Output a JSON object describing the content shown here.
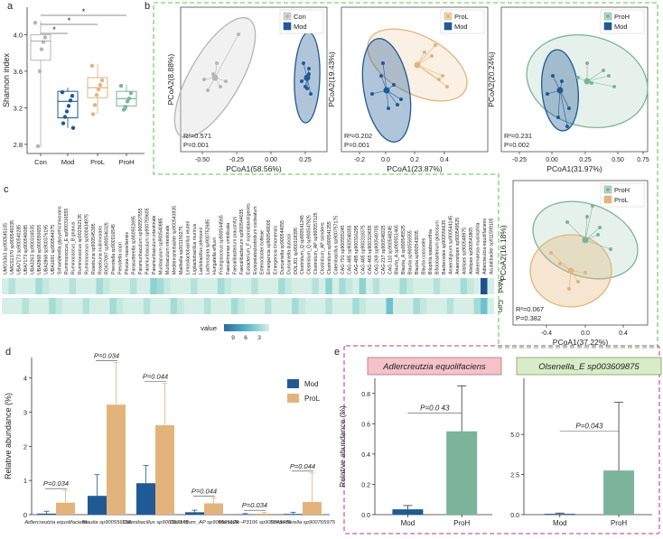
{
  "figure_labels": {
    "a": "a",
    "b": "b",
    "c": "c",
    "d": "d",
    "e": "e"
  },
  "colors": {
    "con": "#b5b5b5",
    "mod": "#1f5a96",
    "prol": "#e2b47c",
    "proh": "#7bb49a",
    "panel_border_green": "#7fd06c",
    "panel_border_pink": "#c55ea9",
    "heat_low": "#2d6c99",
    "heat_mid": "#55b6c8",
    "heat_high": "#d5efe6"
  },
  "chart_data": [
    {
      "id": "a",
      "type": "box",
      "ylabel": "Shannon index",
      "yticks": [
        "2.8",
        "3.2",
        "3.6",
        "4.0"
      ],
      "ylim": [
        2.7,
        4.3
      ],
      "categories": [
        "Con",
        "Mod",
        "ProL",
        "ProH"
      ],
      "medians": [
        3.93,
        3.27,
        3.42,
        3.3
      ],
      "q1": [
        3.72,
        3.09,
        3.31,
        3.22
      ],
      "q3": [
        4.0,
        3.38,
        3.53,
        3.38
      ],
      "whisker_low": [
        2.77,
        2.98,
        3.13,
        3.17
      ],
      "whisker_high": [
        4.15,
        3.42,
        3.68,
        3.45
      ],
      "points": [
        [
          4.13,
          3.97,
          3.92,
          3.84,
          3.6,
          2.78
        ],
        [
          3.37,
          3.33,
          3.28,
          3.22,
          3.16,
          3.1,
          3.03,
          2.98
        ],
        [
          3.66,
          3.5,
          3.45,
          3.4,
          3.34,
          3.23,
          3.13
        ],
        [
          3.44,
          3.36,
          3.3,
          3.27,
          3.21,
          3.18
        ]
      ],
      "significance": [
        "*",
        "*",
        "*"
      ]
    },
    {
      "id": "b1",
      "type": "scatter",
      "xlabel": "PCoA1(58.56%)",
      "ylabel": "PCoA2(8.88%)",
      "xticks": [
        "-0.50",
        "-0.25",
        "0.00",
        "0.25"
      ],
      "legend": [
        "Con",
        "Mod"
      ],
      "r2": "R²=0.571",
      "p": "P=0.001"
    },
    {
      "id": "b2",
      "type": "scatter",
      "xlabel": "PCoA1(23.87%)",
      "ylabel": "PCoA2(19.43%)",
      "xticks": [
        "-0.2",
        "0.0",
        "0.2",
        "0.4"
      ],
      "legend": [
        "ProL",
        "Mod"
      ],
      "r2": "R²=0.202",
      "p": "P=0.001"
    },
    {
      "id": "b3",
      "type": "scatter",
      "xlabel": "PCoA1(31.97%)",
      "ylabel": "PCoA2(20.24%)",
      "xticks": [
        "-0.25",
        "0.00",
        "0.25",
        "0.50",
        "0.75"
      ],
      "legend": [
        "ProH",
        "Mod"
      ],
      "r2": "R²=0.231",
      "p": "P=0.002"
    },
    {
      "id": "b4",
      "type": "scatter",
      "xlabel": "PCoA1(37.22%)",
      "ylabel": "PCoA2(16.18%)",
      "xticks": [
        "-0.4",
        "0.0",
        "0.4"
      ],
      "legend": [
        "ProH",
        "ProL"
      ],
      "r2": "R²=0.067",
      "p": "P=0.382"
    },
    {
      "id": "c",
      "type": "heatmap",
      "rows": [
        "Mod",
        "Con"
      ],
      "columns": [
        "UMGS363 sp900545105",
        "UMGS1370 sp900549235",
        "UBA7173 sp900540285",
        "UBA7173 sp900540085",
        "UBA3263 sp900316535",
        "UBA2868 sp900550655",
        "UBA2868 sp900376195",
        "UBA1691 sp900544375",
        "Schaedlerella glycyrrhizinivorans",
        "Ruminococcus_E sp900316555",
        "Ruminococcus_B gnavus",
        "Ruminococcus sp002362135",
        "Ruminococcus sp000434975",
        "Roseburia sp900545395",
        "Roseburia inulinivorans",
        "RGIG7097 sp900546325",
        "Prevotella sp900316545",
        "Prevotella copri",
        "Phocea massiliensis",
        "Parasutterella sp900552695",
        "Paramuribaculum sp900557555",
        "Paramuribaculum sp900759605",
        "Paramuribaculum intestinale",
        "Muribaculum sp900540885",
        "Muribaculum intestinale",
        "Mediterraneibacter sp900543935",
        "Mailhella sp003150275",
        "Limosilactobacillus reuteri",
        "Ligilactobacillus murinus",
        "Lactobacillus johnsonii",
        "Lachnospira sp900752685",
        "Hungatella effluvii",
        "Frisingicoccus sp900544565",
        "Faecalimonas umbilicata",
        "Faecalibacterium prausnitzii",
        "Faecalibacterium sp900544035",
        "Eubacterium_F coprostanoligenes",
        "Erysipelatoclostridium cocleatum",
        "Enterocloster bolteae",
        "Emergencia sp900549005",
        "Emergencia timonensis",
        "Duncaniella sp900544055",
        "Duncaniella dubosii",
        "DOLJ01 sp900318395",
        "Clostridium_Q sp900541245",
        "Clostridium_Q sp900547825",
        "Clostridium_AP sp900557125",
        "Clostridium_AP scindens",
        "Clostridium sp900541255",
        "Catenibacillus sp900757175",
        "CAG-791 sp900555245",
        "CAG-485 sp900548355",
        "CAG-485 sp900316295",
        "CAG-485 sp900318375",
        "CAG-465 sp900319655",
        "CAG-269 sp900549705",
        "CAG-217 sp900548225",
        "CAG-110 sp900548245",
        "Blautia_A sp900551465",
        "Blautia_A sp900545525",
        "Blautia sp900556555",
        "Blautia sp900543935",
        "Blautia coccoides",
        "Bilophila wadsworthia",
        "Bifidobacterium globosum",
        "Bacteroides sp900556635",
        "Anaerotignum sp900544145",
        "Anaerostipes sp900549525",
        "Alistipes sp900548975",
        "Alistipes sp900543805",
        "Akkermansia muciniphila",
        "Adlercreutzia equolifaciens",
        "Acutalibacter sp911599105"
      ],
      "legend_title": "value",
      "legend_ticks": [
        "9",
        "6",
        "3"
      ]
    },
    {
      "id": "d",
      "type": "bar",
      "ylabel": "Relative abundance (%)",
      "yticks": [
        "0",
        "1",
        "2",
        "3",
        "4"
      ],
      "ylim": [
        0,
        4.6
      ],
      "categories": [
        "Adlercreutzia equolifaciens",
        "Blautia sp900556555",
        "Catenibacillus sp900557175",
        "Clostridium_AP sp900509125",
        "Marseille−P3106 sp900543935",
        "Schaedlerella sp900765975"
      ],
      "series": [
        {
          "name": "Mod",
          "values": [
            0.03,
            0.55,
            0.92,
            0.07,
            0.01,
            0.02
          ],
          "errors": [
            0.07,
            0.62,
            0.52,
            0.06,
            0.02,
            0.05
          ]
        },
        {
          "name": "ProL",
          "values": [
            0.35,
            3.22,
            2.62,
            0.33,
            0.03,
            0.37
          ],
          "errors": [
            0.36,
            1.23,
            1.22,
            0.16,
            0.04,
            0.85
          ]
        }
      ],
      "pvalues": [
        "P=0.034",
        "P=0.034",
        "P=0.044",
        "P=0.044",
        "P=0.034",
        "P=0.044"
      ]
    },
    {
      "id": "e1",
      "type": "bar",
      "title": "Adlercreutzia equolifaciens",
      "ylabel": "Relative abundance (%)",
      "yticks": [
        "0.0",
        "0.2",
        "0.4",
        "0.6",
        "0.8"
      ],
      "ylim": [
        0,
        0.9
      ],
      "categories": [
        "Mod",
        "ProH"
      ],
      "values": [
        0.035,
        0.55
      ],
      "errors": [
        0.025,
        0.3
      ],
      "pvalue": "P=0.0 43"
    },
    {
      "id": "e2",
      "type": "bar",
      "title": "Olsenella_E sp003609875",
      "yticks": [
        "0.0",
        "2.5",
        "5.0"
      ],
      "ylim": [
        0,
        8.5
      ],
      "categories": [
        "Mod",
        "ProH"
      ],
      "values": [
        0.05,
        2.75
      ],
      "errors": [
        0.05,
        4.25
      ],
      "pvalue": "P=0.043"
    }
  ]
}
